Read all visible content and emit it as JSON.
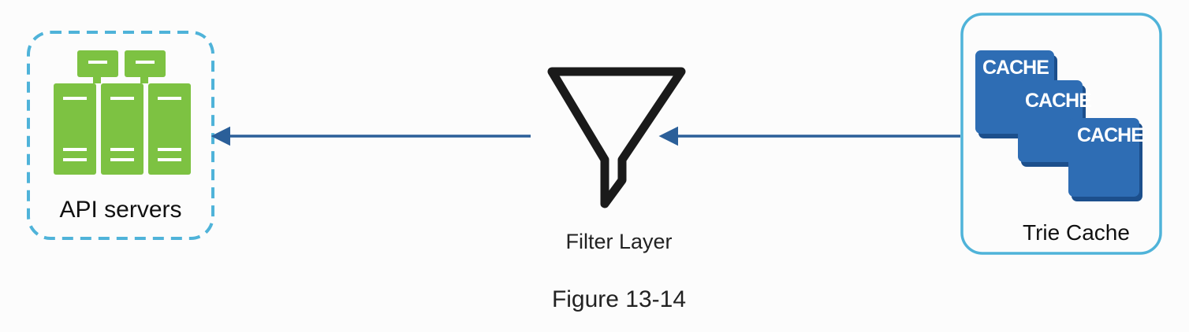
{
  "nodes": {
    "api_servers": {
      "label": "API servers"
    },
    "filter_layer": {
      "label": "Filter Layer"
    },
    "trie_cache": {
      "label": "Trie Cache",
      "cache_blocks": [
        "CACHE",
        "CACHE",
        "CACHE"
      ]
    }
  },
  "edges": [
    {
      "from": "trie_cache",
      "to": "filter_layer"
    },
    {
      "from": "filter_layer",
      "to": "api_servers"
    }
  ],
  "caption": "Figure 13-14",
  "colors": {
    "server_green": "#7dc242",
    "dashed_border": "#4fb3d9",
    "cache_blue": "#2e6db4",
    "cache_blue_dark": "#1c4f8c",
    "arrow": "#2b5f99",
    "trie_border": "#4fb3d9"
  }
}
